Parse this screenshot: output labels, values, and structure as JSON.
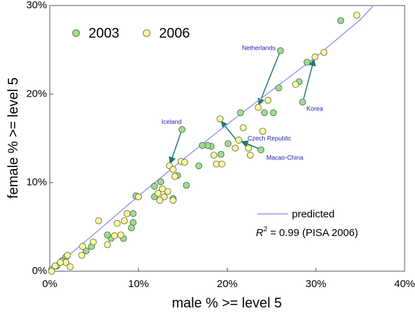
{
  "chart_data": {
    "type": "scatter",
    "x_label": "male % >= level 5",
    "y_label": "female % >= level 5",
    "xlim": [
      0,
      40
    ],
    "ylim": [
      0,
      30
    ],
    "xticks": [
      {
        "value": 0,
        "label": "0%"
      },
      {
        "value": 10,
        "label": "10%"
      },
      {
        "value": 20,
        "label": "20%"
      },
      {
        "value": 30,
        "label": "30%"
      },
      {
        "value": 40,
        "label": "40%"
      }
    ],
    "yticks": [
      {
        "value": 0,
        "label": "0%"
      },
      {
        "value": 10,
        "label": "10%"
      },
      {
        "value": 20,
        "label": "20%"
      },
      {
        "value": 30,
        "label": "30%"
      }
    ],
    "series": [
      {
        "name": "2003",
        "type": "scatter",
        "color": "#99e08a",
        "x": [
          32.8,
          26.0,
          28.5,
          29.0,
          28.1,
          25.8,
          24.2,
          25.2,
          23.8,
          21.5,
          20.1,
          18.2,
          17.8,
          17.2,
          14.9,
          19.3,
          16.8,
          15.4,
          14.4,
          11.8,
          12.5,
          11.8,
          13.9,
          9.7,
          9.4,
          9.4,
          9.2,
          8.3,
          6.9,
          6.5,
          4.7,
          4.1,
          1.8,
          1.4,
          0.8,
          0.2
        ],
        "values": [
          28.3,
          24.9,
          19.1,
          23.6,
          21.4,
          20.7,
          17.9,
          17.9,
          13.7,
          17.9,
          14.4,
          14.1,
          14.2,
          14.2,
          16.0,
          13.2,
          11.9,
          9.7,
          10.8,
          9.6,
          10.1,
          8.4,
          8.2,
          8.5,
          6.5,
          5.5,
          4.9,
          3.7,
          3.7,
          4.1,
          2.8,
          2.3,
          1.6,
          1.2,
          0.6,
          0.2
        ]
      },
      {
        "name": "2006",
        "type": "scatter",
        "color": "#ffff99",
        "x": [
          34.6,
          29.9,
          30.9,
          27.7,
          23.5,
          24.6,
          24.0,
          21.8,
          19.2,
          21.3,
          20.9,
          22.4,
          22.6,
          18.8,
          19.4,
          18.5,
          13.5,
          13.9,
          14.8,
          15.2,
          14.1,
          12.7,
          13.3,
          12.9,
          12.4,
          12.2,
          13.9,
          10.0,
          8.7,
          8.4,
          7.6,
          8.0,
          7.3,
          5.5,
          6.5,
          3.6,
          3.7,
          4.9,
          2.0,
          1.8,
          1.2,
          0.6,
          2.3,
          0.2
        ],
        "values": [
          28.9,
          24.2,
          24.7,
          21.1,
          18.5,
          19.3,
          15.8,
          16.2,
          17.2,
          14.8,
          13.9,
          13.9,
          13.1,
          12.1,
          12.1,
          13.1,
          11.9,
          11.5,
          12.4,
          12.3,
          10.7,
          9.3,
          9.0,
          8.4,
          8.0,
          8.8,
          8.0,
          8.4,
          6.5,
          5.7,
          5.4,
          4.1,
          4.0,
          5.7,
          3.0,
          1.8,
          2.8,
          3.3,
          1.8,
          1.0,
          1.0,
          0.6,
          0.5,
          0.0
        ]
      },
      {
        "name": "predicted",
        "type": "line",
        "color": "#9999ee",
        "x": [
          0,
          5,
          10,
          15,
          20,
          25,
          30,
          35,
          36.5
        ],
        "values": [
          0,
          4.2,
          8.5,
          12.6,
          16.6,
          20.4,
          24.2,
          28.4,
          30
        ]
      }
    ],
    "r_squared": {
      "symbol": "R",
      "exponent": "2",
      "text": " = 0.99 (PISA 2006)"
    },
    "annotations": [
      "Netherlands",
      "Iceland",
      "Czech Republic",
      "Macao-China",
      "Korea"
    ]
  }
}
